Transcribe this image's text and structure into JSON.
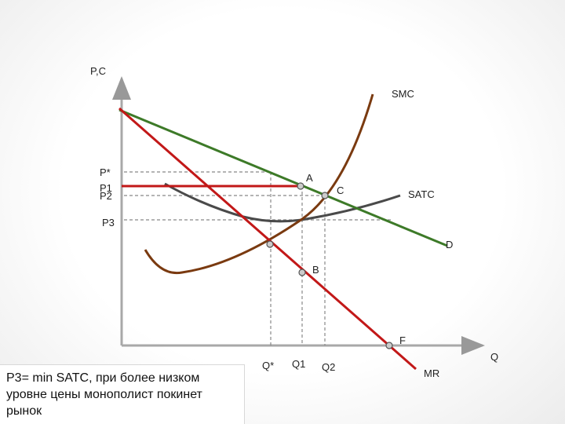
{
  "axes": {
    "y_label": "P,C",
    "x_label": "Q"
  },
  "curves": {
    "smc": {
      "label": "SMC",
      "color": "#7a3a10"
    },
    "satc": {
      "label": "SATC",
      "color": "#4a4a4a"
    },
    "demand": {
      "label": "D",
      "color": "#3d7a28"
    },
    "mr": {
      "label": "MR",
      "color": "#c21818"
    }
  },
  "price_labels": {
    "p_star": "P*",
    "p1": "P1",
    "p2": "P2",
    "p3": "P3"
  },
  "quantity_labels": {
    "q_star": "Q*",
    "q1": "Q1",
    "q2": "Q2"
  },
  "points": {
    "a": "A",
    "b": "B",
    "c": "C",
    "f": "F"
  },
  "note": {
    "line1": "P3= min SATC, при более низком",
    "line2": "уровне цены монополист покинет",
    "line3": "рынок"
  }
}
